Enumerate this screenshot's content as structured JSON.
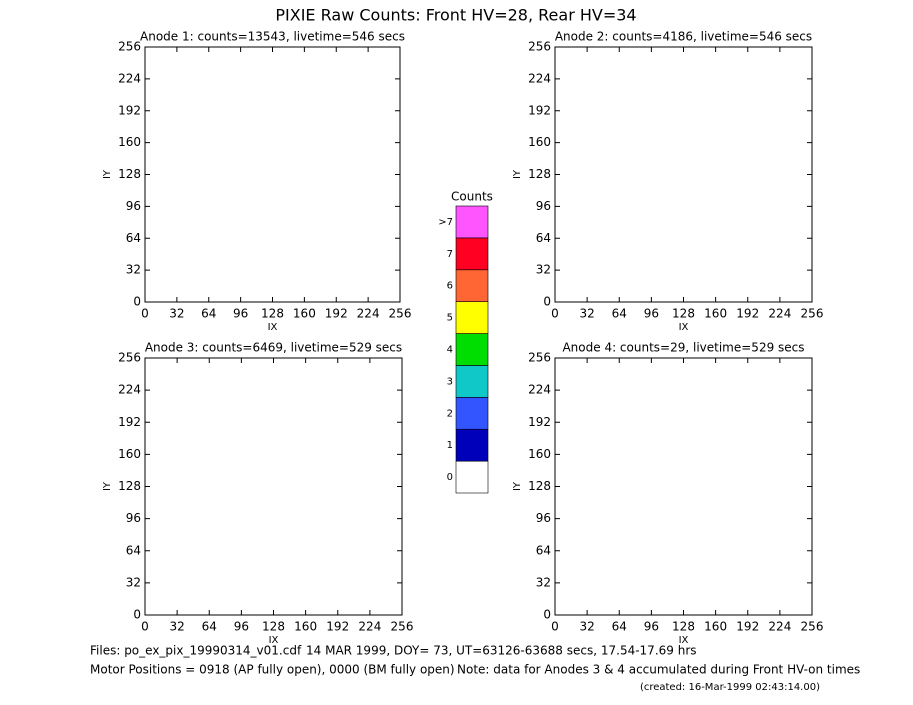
{
  "title": "PIXIE Raw Counts:  Front HV=28, Rear HV=34",
  "chart_data": [
    {
      "type": "heatmap",
      "title": "Anode 1: counts=13543, livetime=546 secs",
      "xlabel": "IX",
      "ylabel": "IY",
      "xlim": [
        0,
        256
      ],
      "ylim": [
        0,
        256
      ],
      "xticks": [
        0,
        32,
        64,
        96,
        128,
        160,
        192,
        224,
        256
      ],
      "yticks": [
        0,
        32,
        64,
        96,
        128,
        160,
        192,
        224,
        256
      ]
    },
    {
      "type": "heatmap",
      "title": "Anode 2: counts=4186, livetime=546 secs",
      "xlabel": "IX",
      "ylabel": "IY",
      "xlim": [
        0,
        256
      ],
      "ylim": [
        0,
        256
      ],
      "xticks": [
        0,
        32,
        64,
        96,
        128,
        160,
        192,
        224,
        256
      ],
      "yticks": [
        0,
        32,
        64,
        96,
        128,
        160,
        192,
        224,
        256
      ]
    },
    {
      "type": "heatmap",
      "title": "Anode 3: counts=6469, livetime=529 secs",
      "xlabel": "IX",
      "ylabel": "IY",
      "xlim": [
        0,
        256
      ],
      "ylim": [
        0,
        256
      ],
      "xticks": [
        0,
        32,
        64,
        96,
        128,
        160,
        192,
        224,
        256
      ],
      "yticks": [
        0,
        32,
        64,
        96,
        128,
        160,
        192,
        224,
        256
      ]
    },
    {
      "type": "heatmap",
      "title": "Anode 4: counts=29, livetime=529 secs",
      "xlabel": "IX",
      "ylabel": "IY",
      "xlim": [
        0,
        256
      ],
      "ylim": [
        0,
        256
      ],
      "xticks": [
        0,
        32,
        64,
        96,
        128,
        160,
        192,
        224,
        256
      ],
      "yticks": [
        0,
        32,
        64,
        96,
        128,
        160,
        192,
        224,
        256
      ]
    }
  ],
  "colorbar": {
    "title": "Counts",
    "levels": [
      {
        "label": "0",
        "color": "#ffffff"
      },
      {
        "label": "1",
        "color": "#0000bb"
      },
      {
        "label": "2",
        "color": "#3355ff"
      },
      {
        "label": "3",
        "color": "#11c8c8"
      },
      {
        "label": "4",
        "color": "#00dd00"
      },
      {
        "label": "5",
        "color": "#ffff00"
      },
      {
        "label": "6",
        "color": "#ff6633"
      },
      {
        "label": "7",
        "color": "#ff0022"
      },
      {
        "label": ">7",
        "color": "#ff55ff"
      }
    ]
  },
  "footer": {
    "files": "Files: po_ex_pix_19990314_v01.cdf",
    "time": "14 MAR 1999, DOY= 73, UT=63126-63688 secs, 17.54-17.69 hrs",
    "motor": "Motor Positions = 0918 (AP fully open), 0000 (BM fully open)",
    "note": "Note: data for Anodes 3 & 4 accumulated during Front HV-on times",
    "created": "(created: 16-Mar-1999 02:43:14.00)"
  }
}
